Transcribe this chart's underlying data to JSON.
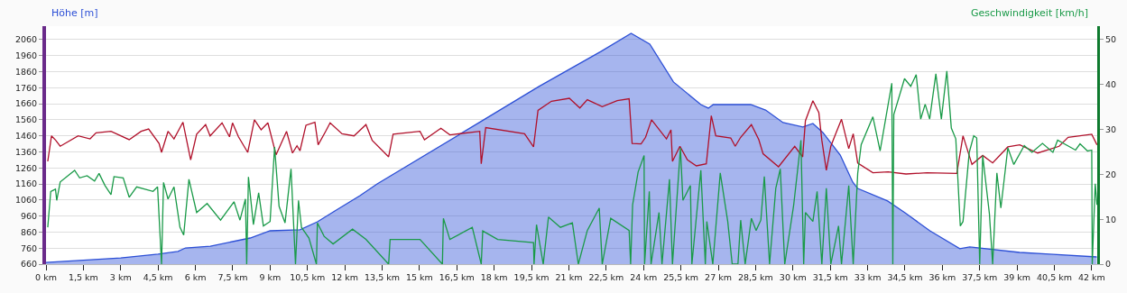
{
  "chart_data": {
    "type": "line",
    "ylabel": "Höhe [m]",
    "y2label": "Geschwindigkeit [km/h]",
    "xlim": [
      0,
      42.22
    ],
    "ylim": [
      660,
      2144
    ],
    "y2lim": [
      0,
      53
    ],
    "xticks": [
      {
        "value": 0,
        "label": "0 km"
      },
      {
        "value": 1.5,
        "label": "1,5 km"
      },
      {
        "value": 3,
        "label": "3 km"
      },
      {
        "value": 4.5,
        "label": "4,5 km"
      },
      {
        "value": 6,
        "label": "6 km"
      },
      {
        "value": 7.5,
        "label": "7,5 km"
      },
      {
        "value": 9,
        "label": "9 km"
      },
      {
        "value": 10.5,
        "label": "10,5 km"
      },
      {
        "value": 12,
        "label": "12 km"
      },
      {
        "value": 13.5,
        "label": "13,5 km"
      },
      {
        "value": 15,
        "label": "15 km"
      },
      {
        "value": 16.5,
        "label": "16,5 km"
      },
      {
        "value": 18,
        "label": "18 km"
      },
      {
        "value": 19.5,
        "label": "19,5 km"
      },
      {
        "value": 21,
        "label": "21 km"
      },
      {
        "value": 22.5,
        "label": "22,5 km"
      },
      {
        "value": 24,
        "label": "24 km"
      },
      {
        "value": 25.5,
        "label": "25,5 km"
      },
      {
        "value": 27,
        "label": "27 km"
      },
      {
        "value": 28.5,
        "label": "28,5 km"
      },
      {
        "value": 30,
        "label": "30 km"
      },
      {
        "value": 31.5,
        "label": "31,5 km"
      },
      {
        "value": 33,
        "label": "33 km"
      },
      {
        "value": 34.5,
        "label": "34,5 km"
      },
      {
        "value": 36,
        "label": "36 km"
      },
      {
        "value": 37.5,
        "label": "37,5 km"
      },
      {
        "value": 39,
        "label": "39 km"
      },
      {
        "value": 40.5,
        "label": "40,5 km"
      },
      {
        "value": 42,
        "label": "42 km"
      }
    ],
    "yticks": [
      660,
      760,
      860,
      960,
      1060,
      1160,
      1260,
      1360,
      1460,
      1560,
      1660,
      1760,
      1860,
      1960,
      2060
    ],
    "y2ticks": [
      0,
      10,
      20,
      30,
      40,
      50
    ],
    "grid": "y",
    "marker": "none",
    "line_style": "solid",
    "series": [
      {
        "type": "area",
        "color": "#2c4fd6",
        "x": [
          0,
          3.0,
          4.5,
          5.3,
          5.6,
          6.6,
          8.2,
          9.0,
          10.2,
          10.9,
          11.6,
          12.61,
          13.3,
          17.4,
          19.8,
          22.3,
          23.5,
          24.25,
          25.2,
          26.3,
          26.6,
          26.8,
          28.3,
          28.9,
          29.6,
          30.4,
          30.8,
          31.2,
          31.9,
          32.4,
          32.6,
          33.8,
          34.5,
          35.5,
          36.7,
          37.1,
          39.1,
          40.3,
          42.2
        ],
        "values": [
          671,
          699,
          722,
          739,
          761,
          772,
          823,
          868,
          874,
          924,
          992,
          1087,
          1160,
          1543,
          1768,
          1987,
          2099,
          2032,
          1796,
          1655,
          1633,
          1655,
          1655,
          1621,
          1543,
          1515,
          1537,
          1481,
          1340,
          1172,
          1132,
          1054,
          980,
          868,
          756,
          767,
          733,
          722,
          705
        ]
      },
      {
        "color": "#b0102a",
        "x": [
          0.07,
          0.22,
          0.39,
          0.57,
          1.29,
          1.77,
          2.01,
          2.61,
          3.34,
          3.82,
          4.12,
          4.54,
          4.64,
          4.9,
          5.14,
          5.5,
          5.81,
          6.05,
          6.41,
          6.59,
          7.07,
          7.37,
          7.49,
          7.73,
          8.1,
          8.37,
          8.64,
          8.91,
          9.24,
          9.66,
          9.9,
          10.08,
          10.2,
          10.44,
          10.8,
          10.93,
          11.23,
          11.41,
          11.89,
          12.37,
          12.85,
          13.1,
          13.76,
          13.94,
          15.02,
          15.2,
          15.86,
          16.22,
          17.42,
          17.48,
          17.66,
          19.22,
          19.58,
          19.76,
          20.3,
          21.02,
          21.44,
          21.74,
          22.34,
          22.94,
          23.42,
          23.54,
          23.9,
          24.08,
          24.32,
          24.92,
          25.1,
          25.16,
          25.46,
          25.76,
          26.12,
          26.52,
          26.72,
          26.9,
          27.5,
          27.68,
          27.9,
          28.33,
          28.63,
          28.8,
          29.42,
          30.07,
          30.39,
          30.5,
          30.8,
          31.04,
          31.16,
          31.34,
          31.52,
          31.7,
          31.95,
          32.24,
          32.42,
          32.6,
          33.21,
          33.82,
          34.54,
          35.38,
          36.58,
          36.83,
          37.19,
          37.62,
          38.02,
          38.63,
          39.11,
          39.83,
          40.69,
          41.05,
          41.53,
          42.0,
          42.21
        ],
        "values": [
          1301,
          1460,
          1432,
          1395,
          1460,
          1441,
          1479,
          1488,
          1436,
          1488,
          1503,
          1413,
          1357,
          1488,
          1441,
          1545,
          1310,
          1470,
          1530,
          1460,
          1541,
          1454,
          1541,
          1454,
          1357,
          1560,
          1498,
          1541,
          1342,
          1488,
          1353,
          1398,
          1367,
          1526,
          1545,
          1404,
          1488,
          1541,
          1473,
          1460,
          1530,
          1432,
          1329,
          1470,
          1488,
          1436,
          1507,
          1466,
          1488,
          1286,
          1511,
          1473,
          1391,
          1619,
          1676,
          1694,
          1634,
          1685,
          1642,
          1679,
          1691,
          1413,
          1410,
          1451,
          1560,
          1441,
          1498,
          1301,
          1395,
          1310,
          1273,
          1286,
          1586,
          1460,
          1447,
          1395,
          1451,
          1530,
          1436,
          1348,
          1267,
          1395,
          1329,
          1554,
          1679,
          1604,
          1432,
          1245,
          1395,
          1466,
          1563,
          1380,
          1473,
          1291,
          1230,
          1235,
          1222,
          1230,
          1226,
          1460,
          1282,
          1338,
          1291,
          1391,
          1404,
          1353,
          1395,
          1451,
          1460,
          1470,
          1404
        ]
      },
      {
        "axis": "y2",
        "color": "#1a9a48",
        "x": [
          0.07,
          0.19,
          0.38,
          0.43,
          0.57,
          1.15,
          1.35,
          1.65,
          1.95,
          2.13,
          2.37,
          2.61,
          2.73,
          3.1,
          3.34,
          3.64,
          4.3,
          4.48,
          4.64,
          4.72,
          4.9,
          5.14,
          5.38,
          5.53,
          5.74,
          6.05,
          6.47,
          7.01,
          7.55,
          7.79,
          8.01,
          8.06,
          8.13,
          8.33,
          8.54,
          8.73,
          9.0,
          9.18,
          9.36,
          9.6,
          9.84,
          10.02,
          10.14,
          10.26,
          10.56,
          10.86,
          10.9,
          11.17,
          11.53,
          12.31,
          12.85,
          13.76,
          13.82,
          15.02,
          15.92,
          15.96,
          16.22,
          17.12,
          17.48,
          17.54,
          18.14,
          19.58,
          19.6,
          19.7,
          19.97,
          20.18,
          20.66,
          21.14,
          21.38,
          21.74,
          22.22,
          22.34,
          22.68,
          23.42,
          23.48,
          23.56,
          23.78,
          24.02,
          24.04,
          24.23,
          24.3,
          24.62,
          24.74,
          25.04,
          25.16,
          25.48,
          25.58,
          25.88,
          25.94,
          26.3,
          26.48,
          26.54,
          26.78,
          27.08,
          27.38,
          27.56,
          27.79,
          27.9,
          28.08,
          28.33,
          28.52,
          28.71,
          28.85,
          29.06,
          29.31,
          29.49,
          29.67,
          30.03,
          30.32,
          30.43,
          30.5,
          30.8,
          30.97,
          31.16,
          31.34,
          31.52,
          31.83,
          31.95,
          32.24,
          32.42,
          32.6,
          32.74,
          33.21,
          33.5,
          33.97,
          34.01,
          34.05,
          34.48,
          34.73,
          34.95,
          35.13,
          35.31,
          35.49,
          35.74,
          35.96,
          36.18,
          36.36,
          36.54,
          36.72,
          36.83,
          37.08,
          37.26,
          37.38,
          37.5,
          37.62,
          37.89,
          38.02,
          38.19,
          38.35,
          38.63,
          38.87,
          39.29,
          39.6,
          40.02,
          40.44,
          40.63,
          41.35,
          41.53,
          41.83,
          42.0,
          42.02,
          42.14,
          42.21
        ],
        "values": [
          8.2,
          16.2,
          16.7,
          14.2,
          18.3,
          20.9,
          19.2,
          19.7,
          18.5,
          20.2,
          17.5,
          15.5,
          19.5,
          19.2,
          14.9,
          17.2,
          16.2,
          17.2,
          0,
          18.2,
          14.5,
          17.2,
          8.2,
          6.5,
          18.9,
          11.5,
          13.5,
          9.8,
          13.9,
          9.8,
          14.5,
          0,
          19.4,
          8.8,
          15.9,
          8.5,
          9.5,
          26.1,
          12.9,
          9.2,
          21.2,
          0,
          14.2,
          8.2,
          5.8,
          0,
          9.2,
          6.2,
          4.5,
          7.8,
          5.5,
          0,
          5.5,
          5.5,
          0,
          10.2,
          5.5,
          8.2,
          0,
          7.4,
          5.5,
          4.8,
          0,
          8.8,
          0,
          10.5,
          8.2,
          9.2,
          0,
          7.5,
          12.5,
          0,
          10.2,
          7.5,
          0,
          13.2,
          20.5,
          24.2,
          0,
          16.2,
          0,
          11.5,
          0,
          18.9,
          0,
          25.9,
          14.2,
          17.5,
          0,
          20.9,
          0,
          9.5,
          0,
          20.3,
          9.5,
          0,
          0,
          9.8,
          0,
          10.2,
          7.5,
          9.8,
          19.5,
          0,
          16.9,
          21.2,
          0,
          13.2,
          27.6,
          0,
          11.5,
          9.5,
          16.2,
          0,
          16.9,
          0,
          8.5,
          0,
          17.5,
          0,
          20.2,
          26.6,
          32.8,
          25.2,
          40.3,
          0,
          33.3,
          41.3,
          39.6,
          42.2,
          32.3,
          35.6,
          32.3,
          42.4,
          32.3,
          43.0,
          30.3,
          27.9,
          8.5,
          9.5,
          24.9,
          28.6,
          28.1,
          0,
          24.2,
          11.2,
          0,
          20.3,
          12.5,
          25.9,
          22.2,
          26.4,
          24.9,
          26.9,
          24.9,
          27.6,
          25.4,
          26.8,
          25.2,
          25.4,
          0,
          17.9,
          13.2
        ]
      }
    ]
  }
}
